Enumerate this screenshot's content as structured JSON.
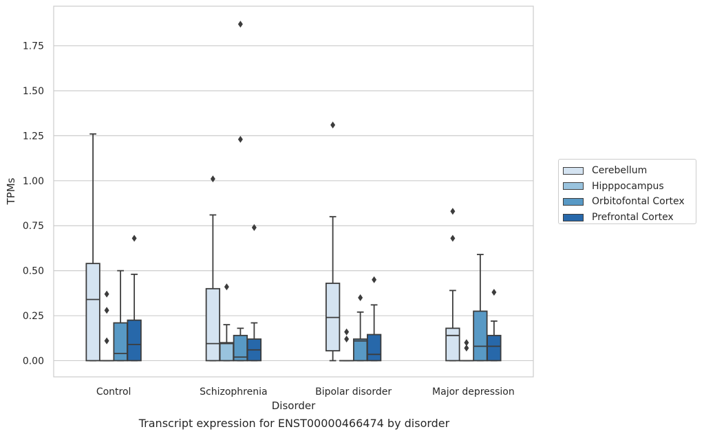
{
  "caption": "Transcript expression for ENST00000466474 by disorder",
  "chart_data": {
    "type": "box",
    "xlabel": "Disorder",
    "ylabel": "TPMs",
    "ylim": [
      -0.09,
      1.97
    ],
    "yticks": [
      "0.00",
      "0.25",
      "0.50",
      "0.75",
      "1.00",
      "1.25",
      "1.50",
      "1.75"
    ],
    "grid": "horizontal",
    "legend_position": "right",
    "categories": [
      "Control",
      "Schizophrenia",
      "Bipolar disorder",
      "Major depression"
    ],
    "series": [
      {
        "name": "Cerebellum",
        "color": "#d4e3f1",
        "boxes": [
          {
            "q1": 0,
            "median": 0.34,
            "q3": 0.54,
            "whislo": 0,
            "whishi": 1.26,
            "fliers": []
          },
          {
            "q1": 0,
            "median": 0.095,
            "q3": 0.4,
            "whislo": 0,
            "whishi": 0.81,
            "fliers": [
              1.01
            ]
          },
          {
            "q1": 0.055,
            "median": 0.24,
            "q3": 0.43,
            "whislo": 0,
            "whishi": 0.8,
            "fliers": [
              1.31
            ]
          },
          {
            "q1": 0,
            "median": 0.14,
            "q3": 0.18,
            "whislo": 0,
            "whishi": 0.39,
            "fliers": [
              0.68,
              0.83
            ]
          }
        ]
      },
      {
        "name": "Hipppocampus",
        "color": "#99c3de",
        "boxes": [
          {
            "q1": 0,
            "median": 0,
            "q3": 0,
            "whislo": 0,
            "whishi": 0,
            "fliers": [
              0.11,
              0.28,
              0.37
            ]
          },
          {
            "q1": 0,
            "median": 0.095,
            "q3": 0.1,
            "whislo": 0,
            "whishi": 0.2,
            "fliers": [
              0.41
            ]
          },
          {
            "q1": 0,
            "median": 0,
            "q3": 0,
            "whislo": 0,
            "whishi": 0,
            "fliers": [
              0.12,
              0.16
            ]
          },
          {
            "q1": 0,
            "median": 0,
            "q3": 0,
            "whislo": 0,
            "whishi": 0,
            "fliers": [
              0.07,
              0.1
            ]
          }
        ]
      },
      {
        "name": "Orbitofontal Cortex",
        "color": "#5899c5",
        "boxes": [
          {
            "q1": 0,
            "median": 0.04,
            "q3": 0.21,
            "whislo": 0,
            "whishi": 0.5,
            "fliers": []
          },
          {
            "q1": 0,
            "median": 0.02,
            "q3": 0.14,
            "whislo": 0,
            "whishi": 0.18,
            "fliers": [
              1.23,
              1.87
            ]
          },
          {
            "q1": 0,
            "median": 0.11,
            "q3": 0.12,
            "whislo": 0,
            "whishi": 0.27,
            "fliers": [
              0.35
            ]
          },
          {
            "q1": 0,
            "median": 0.08,
            "q3": 0.275,
            "whislo": 0,
            "whishi": 0.59,
            "fliers": []
          }
        ]
      },
      {
        "name": "Prefrontal Cortex",
        "color": "#2768aa",
        "boxes": [
          {
            "q1": 0,
            "median": 0.09,
            "q3": 0.225,
            "whislo": 0,
            "whishi": 0.48,
            "fliers": [
              0.68
            ]
          },
          {
            "q1": 0,
            "median": 0.06,
            "q3": 0.12,
            "whislo": 0,
            "whishi": 0.21,
            "fliers": [
              0.74
            ]
          },
          {
            "q1": 0,
            "median": 0.035,
            "q3": 0.145,
            "whislo": 0,
            "whishi": 0.31,
            "fliers": [
              0.45
            ]
          },
          {
            "q1": 0,
            "median": 0.08,
            "q3": 0.14,
            "whislo": 0,
            "whishi": 0.22,
            "fliers": [
              0.38
            ]
          }
        ]
      }
    ]
  }
}
